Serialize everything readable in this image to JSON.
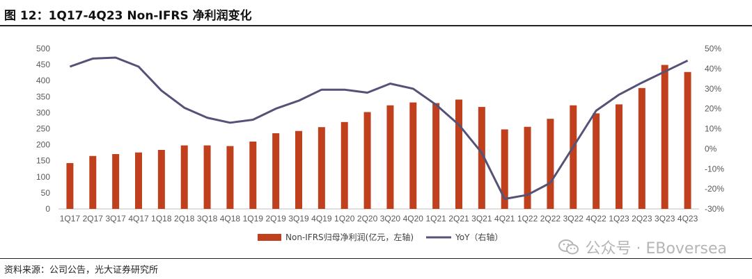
{
  "title": "图 12：1Q17-4Q23 Non-IFRS 净利润变化",
  "source": "资料来源：公司公告，光大证券研究所",
  "watermark": "公众号 · EBoversea",
  "colors": {
    "bar": "#C0401E",
    "line": "#555277",
    "axis": "#BFBFBF",
    "text": "#595959"
  },
  "chart_data": {
    "type": "bar",
    "categories": [
      "1Q17",
      "2Q17",
      "3Q17",
      "4Q17",
      "1Q18",
      "2Q18",
      "3Q18",
      "4Q18",
      "1Q19",
      "2Q19",
      "3Q19",
      "4Q19",
      "1Q20",
      "2Q20",
      "3Q20",
      "4Q20",
      "1Q21",
      "2Q21",
      "3Q21",
      "4Q21",
      "1Q22",
      "2Q22",
      "3Q22",
      "4Q22",
      "1Q23",
      "2Q23",
      "3Q23",
      "4Q23"
    ],
    "series": [
      {
        "name": "Non-IFRS归母净利润(亿元，左轴)",
        "type": "bar",
        "axis": "left",
        "values": [
          143,
          165,
          171,
          176,
          184,
          198,
          198,
          196,
          210,
          236,
          243,
          255,
          271,
          302,
          323,
          332,
          330,
          341,
          318,
          248,
          256,
          281,
          323,
          298,
          326,
          377,
          449,
          427
        ]
      },
      {
        "name": "YoY（右轴）",
        "type": "line",
        "axis": "right",
        "values": [
          41,
          45,
          45.5,
          41,
          29,
          20.5,
          15.5,
          13,
          14.5,
          20,
          24,
          29.5,
          29.5,
          28,
          32.5,
          30,
          22,
          12,
          -2,
          -25,
          -23,
          -17,
          1,
          19,
          27,
          33,
          38.5,
          44
        ]
      }
    ],
    "y_left": {
      "min": 0,
      "max": 500,
      "ticks": [
        0,
        50,
        100,
        150,
        200,
        250,
        300,
        350,
        400,
        450,
        500
      ]
    },
    "y_right": {
      "min": -30,
      "max": 50,
      "ticks": [
        "-30%",
        "-20%",
        "-10%",
        "0%",
        "10%",
        "20%",
        "30%",
        "40%",
        "50%"
      ]
    },
    "legend_position": "bottom",
    "grid": false
  }
}
